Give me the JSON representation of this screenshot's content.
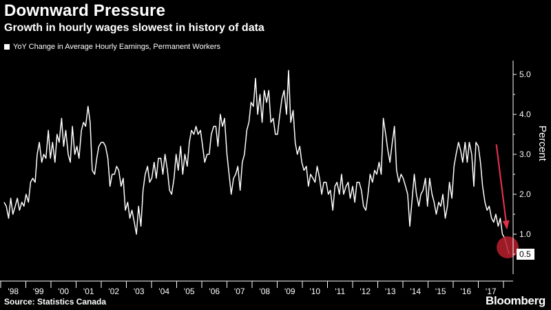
{
  "header": {
    "title": "Downward Pressure",
    "subtitle": "Growth in hourly wages slowest in history of data",
    "legend_label": "YoY Change in Average Hourly Earnings, Permanent Workers"
  },
  "footer": {
    "source": "Source: Statistics Canada",
    "brand": "Bloomberg"
  },
  "colors": {
    "background": "#000000",
    "line": "#ffffff",
    "arrow": "#e0304a",
    "highlight": "#b8202e"
  },
  "chart_data": {
    "type": "line",
    "title": "Downward Pressure",
    "subtitle": "Growth in hourly wages slowest in history of data",
    "ylabel": "Percent",
    "ylim": [
      0,
      5.5
    ],
    "y_ticks": [
      1.0,
      2.0,
      3.0,
      4.0,
      5.0
    ],
    "y_tick_labels": [
      "1.0",
      "2.0",
      "3.0",
      "4.0",
      "5.0"
    ],
    "x_tick_labels": [
      "'98",
      "'99",
      "'00",
      "'01",
      "'02",
      "'03",
      "'04",
      "'05",
      "'06",
      "'07",
      "'08",
      "'09",
      "'10",
      "'11",
      "'12",
      "'13",
      "'14",
      "'15",
      "'16",
      "'17"
    ],
    "x_range": [
      1998.0,
      2017.0
    ],
    "grid": false,
    "legend_position": "top-left",
    "series": [
      {
        "name": "YoY Change in Average Hourly Earnings, Permanent Workers",
        "x": [
          1998.0,
          1998.08,
          1998.17,
          1998.25,
          1998.33,
          1998.42,
          1998.5,
          1998.58,
          1998.67,
          1998.75,
          1998.83,
          1998.92,
          1999.0,
          1999.08,
          1999.17,
          1999.25,
          1999.33,
          1999.42,
          1999.5,
          1999.58,
          1999.67,
          1999.75,
          1999.83,
          1999.92,
          2000.0,
          2000.08,
          2000.17,
          2000.25,
          2000.33,
          2000.42,
          2000.5,
          2000.58,
          2000.67,
          2000.75,
          2000.83,
          2000.92,
          2001.0,
          2001.08,
          2001.17,
          2001.25,
          2001.33,
          2001.42,
          2001.5,
          2001.58,
          2001.67,
          2001.75,
          2001.83,
          2001.92,
          2002.0,
          2002.08,
          2002.17,
          2002.25,
          2002.33,
          2002.42,
          2002.5,
          2002.58,
          2002.67,
          2002.75,
          2002.83,
          2002.92,
          2003.0,
          2003.08,
          2003.17,
          2003.25,
          2003.33,
          2003.42,
          2003.5,
          2003.58,
          2003.67,
          2003.75,
          2003.83,
          2003.92,
          2004.0,
          2004.08,
          2004.17,
          2004.25,
          2004.33,
          2004.42,
          2004.5,
          2004.58,
          2004.67,
          2004.75,
          2004.83,
          2004.92,
          2005.0,
          2005.08,
          2005.17,
          2005.25,
          2005.33,
          2005.42,
          2005.5,
          2005.58,
          2005.67,
          2005.75,
          2005.83,
          2005.92,
          2006.0,
          2006.08,
          2006.17,
          2006.25,
          2006.33,
          2006.42,
          2006.5,
          2006.58,
          2006.67,
          2006.75,
          2006.83,
          2006.92,
          2007.0,
          2007.08,
          2007.17,
          2007.25,
          2007.33,
          2007.42,
          2007.5,
          2007.58,
          2007.67,
          2007.75,
          2007.83,
          2007.92,
          2008.0,
          2008.08,
          2008.17,
          2008.25,
          2008.33,
          2008.42,
          2008.5,
          2008.58,
          2008.67,
          2008.75,
          2008.83,
          2008.92,
          2009.0,
          2009.08,
          2009.17,
          2009.25,
          2009.33,
          2009.42,
          2009.5,
          2009.58,
          2009.67,
          2009.75,
          2009.83,
          2009.92,
          2010.0,
          2010.08,
          2010.17,
          2010.25,
          2010.33,
          2010.42,
          2010.5,
          2010.58,
          2010.67,
          2010.75,
          2010.83,
          2010.92,
          2011.0,
          2011.08,
          2011.17,
          2011.25,
          2011.33,
          2011.42,
          2011.5,
          2011.58,
          2011.67,
          2011.75,
          2011.83,
          2011.92,
          2012.0,
          2012.08,
          2012.17,
          2012.25,
          2012.33,
          2012.42,
          2012.5,
          2012.58,
          2012.67,
          2012.75,
          2012.83,
          2012.92,
          2013.0,
          2013.08,
          2013.17,
          2013.25,
          2013.33,
          2013.42,
          2013.5,
          2013.58,
          2013.67,
          2013.75,
          2013.83,
          2013.92,
          2014.0,
          2014.08,
          2014.17,
          2014.25,
          2014.33,
          2014.42,
          2014.5,
          2014.58,
          2014.67,
          2014.75,
          2014.83,
          2014.92,
          2015.0,
          2015.08,
          2015.17,
          2015.25,
          2015.33,
          2015.42,
          2015.5,
          2015.58,
          2015.67,
          2015.75,
          2015.83,
          2015.92,
          2016.0,
          2016.08,
          2016.17,
          2016.25,
          2016.33,
          2016.42,
          2016.5,
          2016.58,
          2016.67,
          2016.75,
          2016.83,
          2016.92,
          2017.0,
          2017.08
        ],
        "values": [
          1.8,
          1.7,
          1.4,
          1.9,
          1.5,
          1.7,
          1.9,
          1.6,
          1.8,
          1.7,
          2.0,
          1.8,
          2.3,
          2.4,
          2.3,
          3.0,
          3.3,
          2.8,
          3.0,
          2.9,
          3.6,
          2.9,
          3.3,
          2.8,
          3.5,
          3.3,
          3.9,
          3.2,
          3.6,
          3.0,
          2.8,
          3.7,
          3.0,
          3.2,
          2.9,
          3.6,
          3.8,
          3.7,
          4.2,
          3.8,
          2.6,
          2.5,
          2.9,
          3.2,
          3.3,
          3.3,
          3.2,
          2.9,
          2.2,
          2.5,
          2.5,
          2.7,
          2.6,
          2.2,
          2.4,
          1.6,
          1.8,
          1.4,
          1.6,
          1.3,
          1.0,
          1.7,
          1.2,
          2.1,
          2.5,
          2.7,
          2.3,
          2.4,
          2.8,
          2.4,
          2.9,
          2.9,
          2.5,
          3.0,
          2.6,
          2.1,
          2.0,
          2.4,
          3.0,
          2.6,
          3.2,
          2.5,
          3.0,
          2.7,
          3.3,
          3.6,
          3.5,
          3.7,
          3.5,
          3.6,
          3.2,
          2.8,
          3.0,
          3.0,
          3.5,
          3.7,
          3.7,
          3.2,
          4.0,
          3.7,
          3.9,
          3.0,
          2.5,
          2.0,
          2.4,
          2.5,
          2.7,
          2.1,
          2.8,
          3.0,
          3.6,
          3.8,
          4.3,
          4.2,
          4.9,
          4.0,
          4.5,
          3.8,
          4.6,
          4.3,
          4.6,
          3.8,
          3.9,
          3.5,
          3.5,
          4.0,
          4.4,
          4.6,
          4.0,
          5.1,
          3.8,
          4.1,
          3.3,
          3.0,
          3.2,
          2.8,
          2.6,
          2.7,
          2.2,
          2.5,
          2.4,
          2.3,
          2.7,
          2.4,
          2.0,
          2.3,
          2.3,
          2.0,
          2.1,
          1.6,
          2.2,
          2.3,
          2.0,
          2.5,
          2.0,
          2.2,
          2.3,
          1.9,
          2.2,
          1.8,
          2.3,
          2.3,
          2.1,
          1.7,
          1.6,
          2.0,
          2.5,
          2.3,
          2.6,
          2.5,
          2.8,
          2.5,
          3.9,
          3.5,
          3.1,
          2.8,
          3.3,
          3.7,
          2.6,
          2.3,
          2.5,
          2.4,
          2.2,
          2.0,
          1.2,
          1.9,
          2.5,
          2.0,
          1.7,
          2.0,
          2.1,
          2.4,
          1.7,
          2.4,
          2.0,
          1.8,
          1.5,
          1.8,
          1.7,
          2.0,
          1.4,
          1.7,
          2.3,
          1.9,
          2.7,
          3.0,
          3.3,
          3.1,
          2.8,
          3.3,
          2.8,
          3.3,
          3.0,
          2.2,
          3.3,
          3.2,
          2.8,
          2.2,
          1.8,
          1.6,
          1.7,
          1.4,
          1.3,
          1.5,
          1.2,
          1.4,
          1.0,
          0.9,
          0.7,
          0.5
        ]
      }
    ],
    "annotations": {
      "last_value_label": "0.5",
      "highlight_point": {
        "x": 2017.08,
        "y": 0.5
      },
      "arrow": {
        "from": {
          "x": 2016.6,
          "y": 3.25
        },
        "to": {
          "x": 2017.0,
          "y": 1.15
        }
      }
    }
  }
}
